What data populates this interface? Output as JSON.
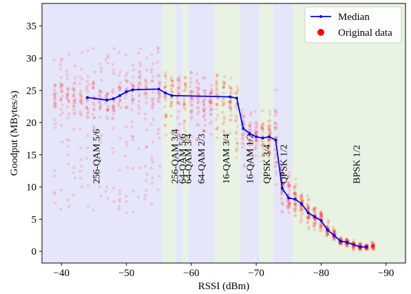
{
  "chart_data": {
    "type": "scatter",
    "xlabel": "RSSI (dBm)",
    "ylabel": "Goodput (MBytes/s)",
    "xlim": [
      -37,
      -93
    ],
    "ylim": [
      -1.8,
      38.5
    ],
    "x_axis_reversed": true,
    "grid": false,
    "xticks": [
      -40,
      -50,
      -60,
      -70,
      -80,
      -90
    ],
    "xtick_labels": [
      "−40",
      "−50",
      "−60",
      "−70",
      "−80",
      "−90"
    ],
    "yticks": [
      0,
      5,
      10,
      15,
      20,
      25,
      30,
      35
    ],
    "ytick_labels": [
      "0",
      "5",
      "10",
      "15",
      "20",
      "25",
      "30",
      "35"
    ],
    "legend": {
      "position": "top-right",
      "entries": [
        {
          "label": "Median",
          "color": "#0000ff",
          "marker": "line-dot"
        },
        {
          "label": "Original data",
          "color": "#ff0000",
          "marker": "dot"
        }
      ]
    },
    "regions": [
      {
        "label": "256-QAM 5/6",
        "x_start": -37,
        "x_end": -55.6,
        "color": "#e6e6fa",
        "label_x": -45.3
      },
      {
        "label": "256-QAM 3/4",
        "x_start": -55.6,
        "x_end": -57.6,
        "color": "#e8f3e3",
        "label_x": -57.4
      },
      {
        "label": "64-QAM 5/6",
        "x_start": -57.6,
        "x_end": -58.6,
        "color": "#e6e6fa",
        "label_x": -58.6
      },
      {
        "label": "64-QAM 3/4",
        "x_start": -58.6,
        "x_end": -59.6,
        "color": "#e8f3e3",
        "label_x": -59.5
      },
      {
        "label": "64-QAM 2/3",
        "x_start": -59.6,
        "x_end": -63.6,
        "color": "#e6e6fa",
        "label_x": -61.5
      },
      {
        "label": "16-QAM 3/4",
        "x_start": -63.6,
        "x_end": -67.6,
        "color": "#e8f3e3",
        "label_x": -65.3
      },
      {
        "label": "16-QAM 1/2",
        "x_start": -67.6,
        "x_end": -70.6,
        "color": "#e6e6fa",
        "label_x": -69.0
      },
      {
        "label": "QPSK 3/4",
        "x_start": -70.6,
        "x_end": -72.6,
        "color": "#e8f3e3",
        "label_x": -71.6
      },
      {
        "label": "QPSK 1/2",
        "x_start": -72.6,
        "x_end": -75.6,
        "color": "#e6e6fa",
        "label_x": -74.2
      },
      {
        "label": "BPSK 1/2",
        "x_start": -75.6,
        "x_end": -93,
        "color": "#e8f3e3",
        "label_x": -85.4
      }
    ],
    "series": [
      {
        "name": "Median",
        "color": "#0000ff",
        "x": [
          -44,
          -47,
          -48,
          -49,
          -50,
          -51,
          -55,
          -56,
          -57,
          -66,
          -67,
          -68,
          -69,
          -70,
          -71,
          -72,
          -73,
          -74,
          -75,
          -76,
          -77,
          -78,
          -79,
          -80,
          -81,
          -82,
          -83,
          -84,
          -86,
          -87
        ],
        "y": [
          23.9,
          23.5,
          23.7,
          24.2,
          24.8,
          25.1,
          25.2,
          24.6,
          24.2,
          24.0,
          23.8,
          19.1,
          18.3,
          17.8,
          17.6,
          17.8,
          17.3,
          9.8,
          8.3,
          8.1,
          7.4,
          6.0,
          5.4,
          4.8,
          3.3,
          2.5,
          1.6,
          1.4,
          0.7,
          0.7
        ]
      },
      {
        "name": "Original data",
        "color": "#ff0000",
        "generated_from": "median",
        "column_spread": [
          {
            "x_from": -39,
            "x_to": -55.5,
            "low": 6,
            "high": 32
          },
          {
            "x_from": -55.5,
            "x_to": -66,
            "low": 17,
            "high": 28
          },
          {
            "x_from": -66,
            "x_to": -72,
            "low": 13,
            "high": 22
          },
          {
            "x_from": -72,
            "x_to": -88,
            "scale": 0.35
          }
        ]
      }
    ]
  }
}
